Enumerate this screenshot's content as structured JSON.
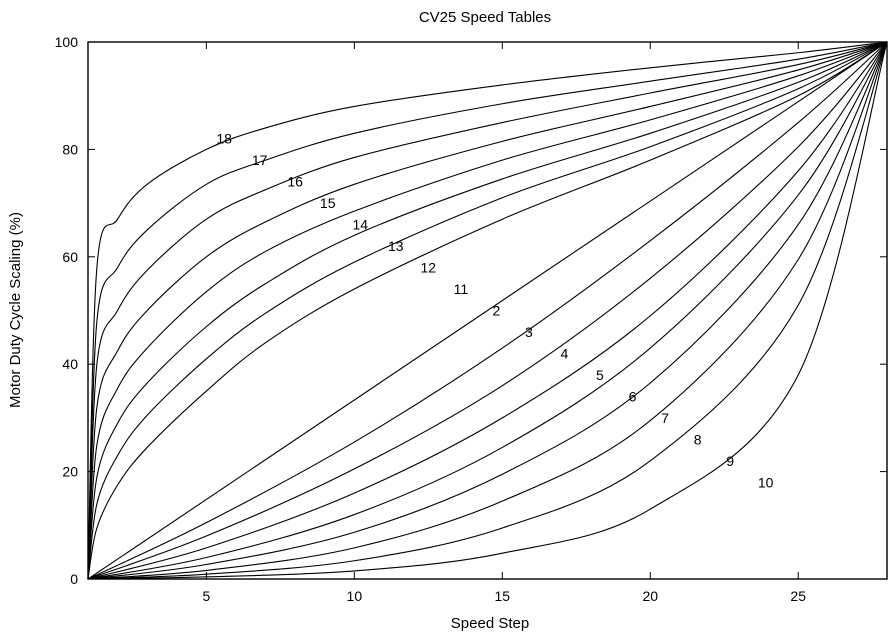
{
  "chart_data": {
    "type": "line",
    "title": "CV25 Speed Tables",
    "xlabel": "Speed Step",
    "ylabel": "Motor Duty Cycle Scaling (%)",
    "xlim": [
      1,
      28
    ],
    "ylim": [
      0,
      100
    ],
    "x_ticks": [
      5,
      10,
      15,
      20,
      25
    ],
    "y_ticks": [
      0,
      20,
      40,
      60,
      80,
      100
    ],
    "grid": false,
    "legend": "none",
    "series": [
      {
        "name": "18",
        "label_at": [
          5.6,
          82
        ],
        "points": [
          [
            1,
            0
          ],
          [
            1.3,
            58
          ],
          [
            2,
            67
          ],
          [
            3,
            73.5
          ],
          [
            5,
            80
          ],
          [
            7,
            84
          ],
          [
            10,
            88
          ],
          [
            15,
            92
          ],
          [
            20,
            95.2
          ],
          [
            25,
            98
          ],
          [
            28,
            100
          ]
        ]
      },
      {
        "name": "17",
        "label_at": [
          6.8,
          78
        ],
        "points": [
          [
            1,
            0
          ],
          [
            1.3,
            48
          ],
          [
            2,
            58
          ],
          [
            3,
            65
          ],
          [
            5,
            73.5
          ],
          [
            7,
            78
          ],
          [
            10,
            83
          ],
          [
            15,
            88.5
          ],
          [
            20,
            92.7
          ],
          [
            25,
            96.8
          ],
          [
            28,
            100
          ]
        ]
      },
      {
        "name": "16",
        "label_at": [
          8.0,
          74
        ],
        "points": [
          [
            1,
            0
          ],
          [
            1.3,
            40
          ],
          [
            2,
            50
          ],
          [
            3,
            57.5
          ],
          [
            5,
            67
          ],
          [
            7,
            72.5
          ],
          [
            10,
            78.5
          ],
          [
            15,
            85
          ],
          [
            20,
            90.5
          ],
          [
            25,
            95.8
          ],
          [
            28,
            100
          ]
        ]
      },
      {
        "name": "15",
        "label_at": [
          9.1,
          70
        ],
        "points": [
          [
            1,
            0
          ],
          [
            1.3,
            32
          ],
          [
            2,
            42.5
          ],
          [
            3,
            50
          ],
          [
            5,
            60
          ],
          [
            7,
            66.5
          ],
          [
            10,
            73.5
          ],
          [
            15,
            81.5
          ],
          [
            20,
            88
          ],
          [
            25,
            94.8
          ],
          [
            28,
            100
          ]
        ]
      },
      {
        "name": "14",
        "label_at": [
          10.2,
          66
        ],
        "points": [
          [
            1,
            0
          ],
          [
            1.3,
            25
          ],
          [
            2,
            35.5
          ],
          [
            3,
            43
          ],
          [
            5,
            53.5
          ],
          [
            7,
            61
          ],
          [
            10,
            68.5
          ],
          [
            15,
            78
          ],
          [
            20,
            85.5
          ],
          [
            25,
            93.7
          ],
          [
            28,
            100
          ]
        ]
      },
      {
        "name": "13",
        "label_at": [
          11.4,
          62
        ],
        "points": [
          [
            1,
            0
          ],
          [
            1.3,
            19
          ],
          [
            2,
            29
          ],
          [
            3,
            36.5
          ],
          [
            5,
            47
          ],
          [
            7,
            55
          ],
          [
            10,
            64
          ],
          [
            15,
            74.5
          ],
          [
            20,
            83
          ],
          [
            25,
            92.5
          ],
          [
            28,
            100
          ]
        ]
      },
      {
        "name": "12",
        "label_at": [
          12.5,
          58
        ],
        "points": [
          [
            1,
            0
          ],
          [
            1.3,
            14
          ],
          [
            2,
            23
          ],
          [
            3,
            30.5
          ],
          [
            5,
            41
          ],
          [
            7,
            49.5
          ],
          [
            10,
            59
          ],
          [
            15,
            71
          ],
          [
            20,
            80.5
          ],
          [
            25,
            91.3
          ],
          [
            28,
            100
          ]
        ]
      },
      {
        "name": "11",
        "label_at": [
          13.6,
          54
        ],
        "points": [
          [
            1,
            0
          ],
          [
            1.3,
            9.5
          ],
          [
            2,
            17.5
          ],
          [
            3,
            24.5
          ],
          [
            5,
            35
          ],
          [
            7,
            44
          ],
          [
            10,
            54
          ],
          [
            15,
            67
          ],
          [
            20,
            78
          ],
          [
            25,
            90
          ],
          [
            28,
            100
          ]
        ]
      },
      {
        "name": "2",
        "label_at": [
          14.8,
          50
        ],
        "points": [
          [
            1,
            0
          ],
          [
            28,
            100
          ]
        ]
      },
      {
        "name": "3",
        "label_at": [
          15.9,
          46
        ],
        "points": [
          [
            1,
            0
          ],
          [
            5,
            10.5
          ],
          [
            10,
            25.5
          ],
          [
            15,
            43
          ],
          [
            20,
            63
          ],
          [
            25,
            85
          ],
          [
            28,
            100
          ]
        ]
      },
      {
        "name": "4",
        "label_at": [
          17.1,
          42
        ],
        "points": [
          [
            1,
            0
          ],
          [
            5,
            8
          ],
          [
            10,
            20.5
          ],
          [
            15,
            36
          ],
          [
            20,
            56
          ],
          [
            25,
            80.5
          ],
          [
            28,
            100
          ]
        ]
      },
      {
        "name": "5",
        "label_at": [
          18.3,
          38
        ],
        "points": [
          [
            1,
            0
          ],
          [
            5,
            5.8
          ],
          [
            10,
            16
          ],
          [
            15,
            30
          ],
          [
            20,
            49
          ],
          [
            25,
            76
          ],
          [
            28,
            100
          ]
        ]
      },
      {
        "name": "6",
        "label_at": [
          19.4,
          34
        ],
        "points": [
          [
            1,
            0
          ],
          [
            5,
            4
          ],
          [
            10,
            12
          ],
          [
            15,
            24.5
          ],
          [
            20,
            43
          ],
          [
            25,
            71.5
          ],
          [
            28,
            100
          ]
        ]
      },
      {
        "name": "7",
        "label_at": [
          20.5,
          30
        ],
        "points": [
          [
            1,
            0
          ],
          [
            5,
            2.7
          ],
          [
            10,
            8.7
          ],
          [
            15,
            19.5
          ],
          [
            20,
            36.5
          ],
          [
            25,
            66
          ],
          [
            28,
            100
          ]
        ]
      },
      {
        "name": "8",
        "label_at": [
          21.6,
          26
        ],
        "points": [
          [
            1,
            0
          ],
          [
            5,
            1.6
          ],
          [
            10,
            5.8
          ],
          [
            15,
            14.5
          ],
          [
            20,
            29.5
          ],
          [
            25,
            59.5
          ],
          [
            28,
            100
          ]
        ]
      },
      {
        "name": "9",
        "label_at": [
          22.7,
          22
        ],
        "points": [
          [
            1,
            0
          ],
          [
            5,
            0.9
          ],
          [
            10,
            3.4
          ],
          [
            15,
            9.5
          ],
          [
            20,
            22
          ],
          [
            25,
            51
          ],
          [
            28,
            100
          ]
        ]
      },
      {
        "name": "10",
        "label_at": [
          23.9,
          18
        ],
        "points": [
          [
            1,
            0
          ],
          [
            5,
            0.4
          ],
          [
            10,
            1.5
          ],
          [
            15,
            4.8
          ],
          [
            20,
            13
          ],
          [
            25,
            38
          ],
          [
            28,
            100
          ]
        ]
      }
    ]
  }
}
